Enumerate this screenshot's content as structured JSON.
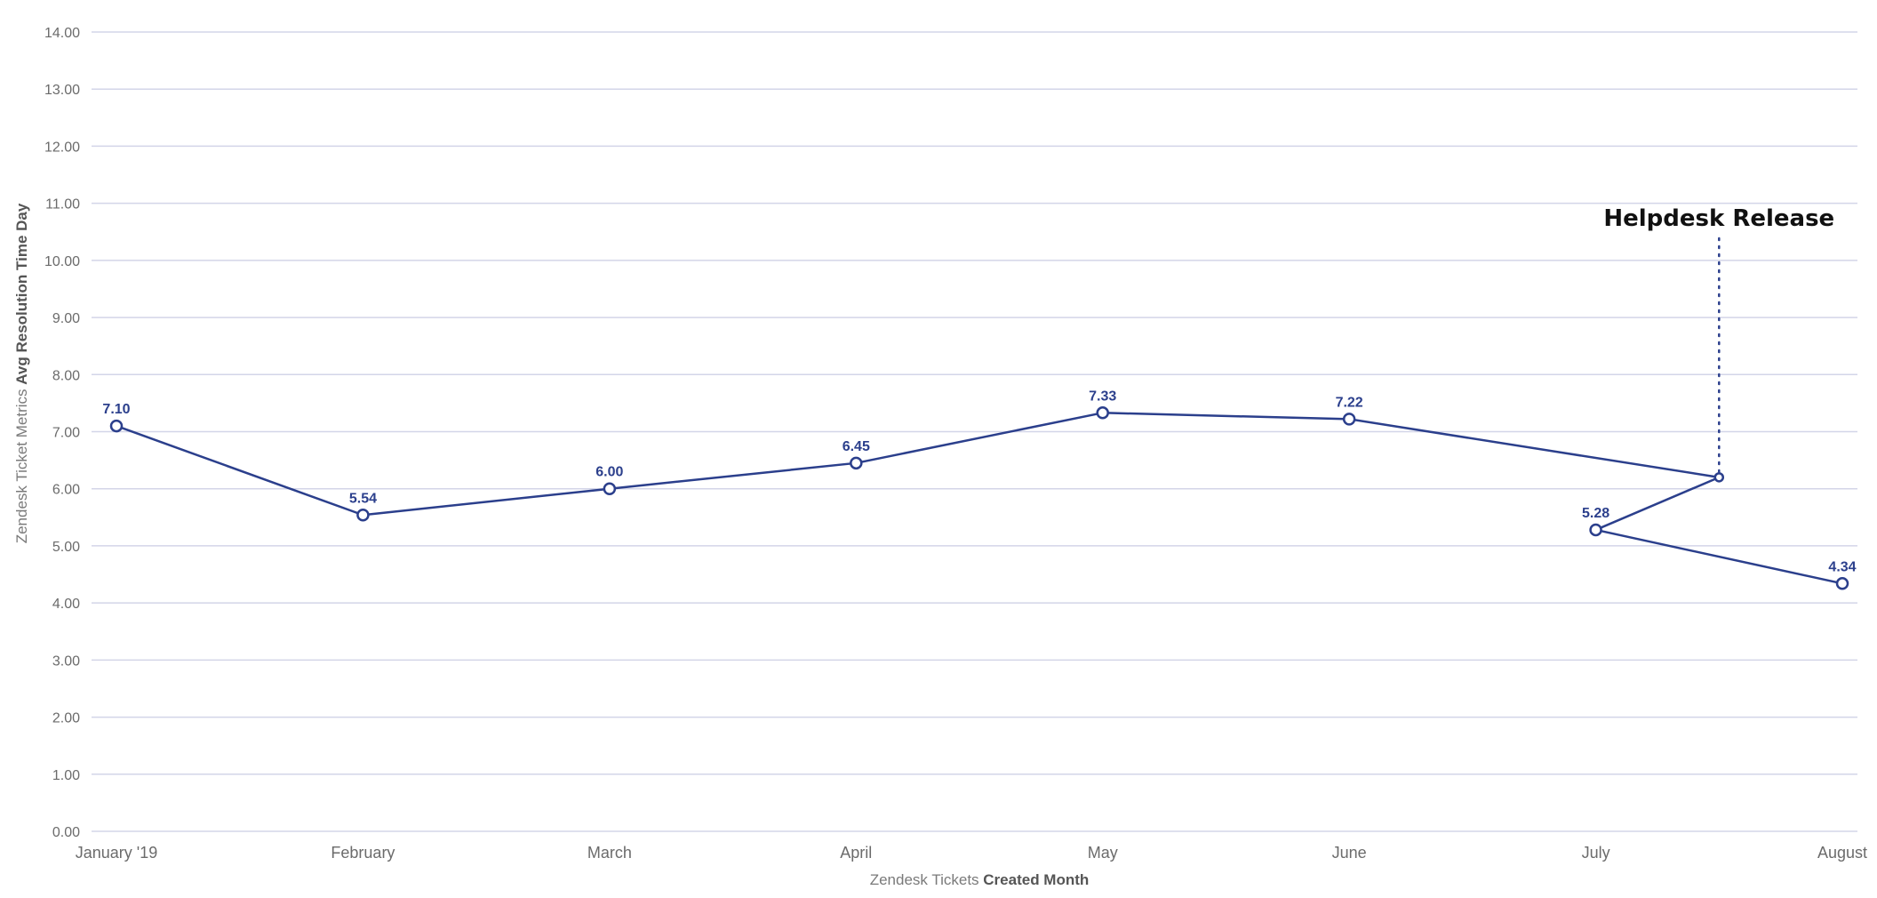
{
  "chart_data": {
    "type": "line",
    "title": "",
    "xlabel_prefix": "Zendesk Tickets",
    "xlabel_bold": "Created Month",
    "ylabel_prefix": "Zendesk Ticket Metrics",
    "ylabel_bold": "Avg Resolution Time Day",
    "ylim": [
      0,
      14
    ],
    "yticks": [
      "0.00",
      "1.00",
      "2.00",
      "3.00",
      "4.00",
      "5.00",
      "6.00",
      "7.00",
      "8.00",
      "9.00",
      "10.00",
      "11.00",
      "12.00",
      "13.00",
      "14.00"
    ],
    "categories": [
      "January '19",
      "February",
      "March",
      "April",
      "May",
      "June",
      "July",
      "August"
    ],
    "series": [
      {
        "values": [
          7.1,
          5.54,
          6.0,
          6.45,
          7.33,
          7.22,
          5.28,
          4.34
        ],
        "labels": [
          "7.10",
          "5.54",
          "6.00",
          "6.45",
          "7.33",
          "7.22",
          "5.28",
          "4.34"
        ]
      }
    ],
    "grid": true,
    "legend": "none",
    "annotation": {
      "text": "Helpdesk Release",
      "x_position": 6.5,
      "y_value": 6.2,
      "style": "dotted vertical line"
    },
    "colors": {
      "line": "#2b3f8c",
      "marker_fill": "#ffffff",
      "grid": "#d3d5e8"
    }
  }
}
